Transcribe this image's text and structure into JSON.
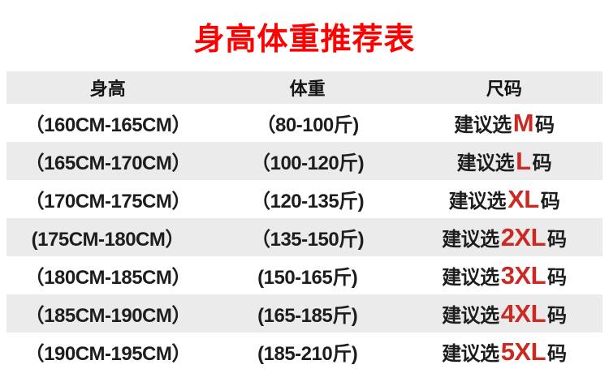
{
  "title": "身高体重推荐表",
  "colors": {
    "title_red": "#fe0000",
    "size_code_red": "#cb2a22",
    "stripe_gray": "#ebebeb",
    "text_dark": "#1d1d1d"
  },
  "table": {
    "headers": {
      "height": "身高",
      "weight": "体重",
      "size": "尺码"
    },
    "rows": [
      {
        "height": "（160CM-165CM）",
        "weight": "（80-100斤)",
        "size_prefix": "建议选 ",
        "size_code": "M",
        "size_suffix": "码"
      },
      {
        "height": "（165CM-170CM）",
        "weight": "（100-120斤)",
        "size_prefix": "建议选 ",
        "size_code": "L",
        "size_suffix": " 码"
      },
      {
        "height": "（170CM-175CM）",
        "weight": "（120-135斤)",
        "size_prefix": "建议选",
        "size_code": "XL",
        "size_suffix": "码"
      },
      {
        "height": "(175CM-180CM）",
        "weight": "（135-150斤)",
        "size_prefix": "建议选",
        "size_code": "2XL",
        "size_suffix": "码"
      },
      {
        "height": "（180CM-185CM）",
        "weight": "(150-165斤)",
        "size_prefix": "建议选",
        "size_code": "3XL",
        "size_suffix": "码"
      },
      {
        "height": "（185CM-190CM）",
        "weight": "(165-185斤)",
        "size_prefix": "建议选",
        "size_code": "4XL",
        "size_suffix": "码"
      },
      {
        "height": "（190CM-195CM）",
        "weight": "(185-210斤)",
        "size_prefix": "建议选",
        "size_code": "5XL",
        "size_suffix": "码"
      }
    ]
  }
}
